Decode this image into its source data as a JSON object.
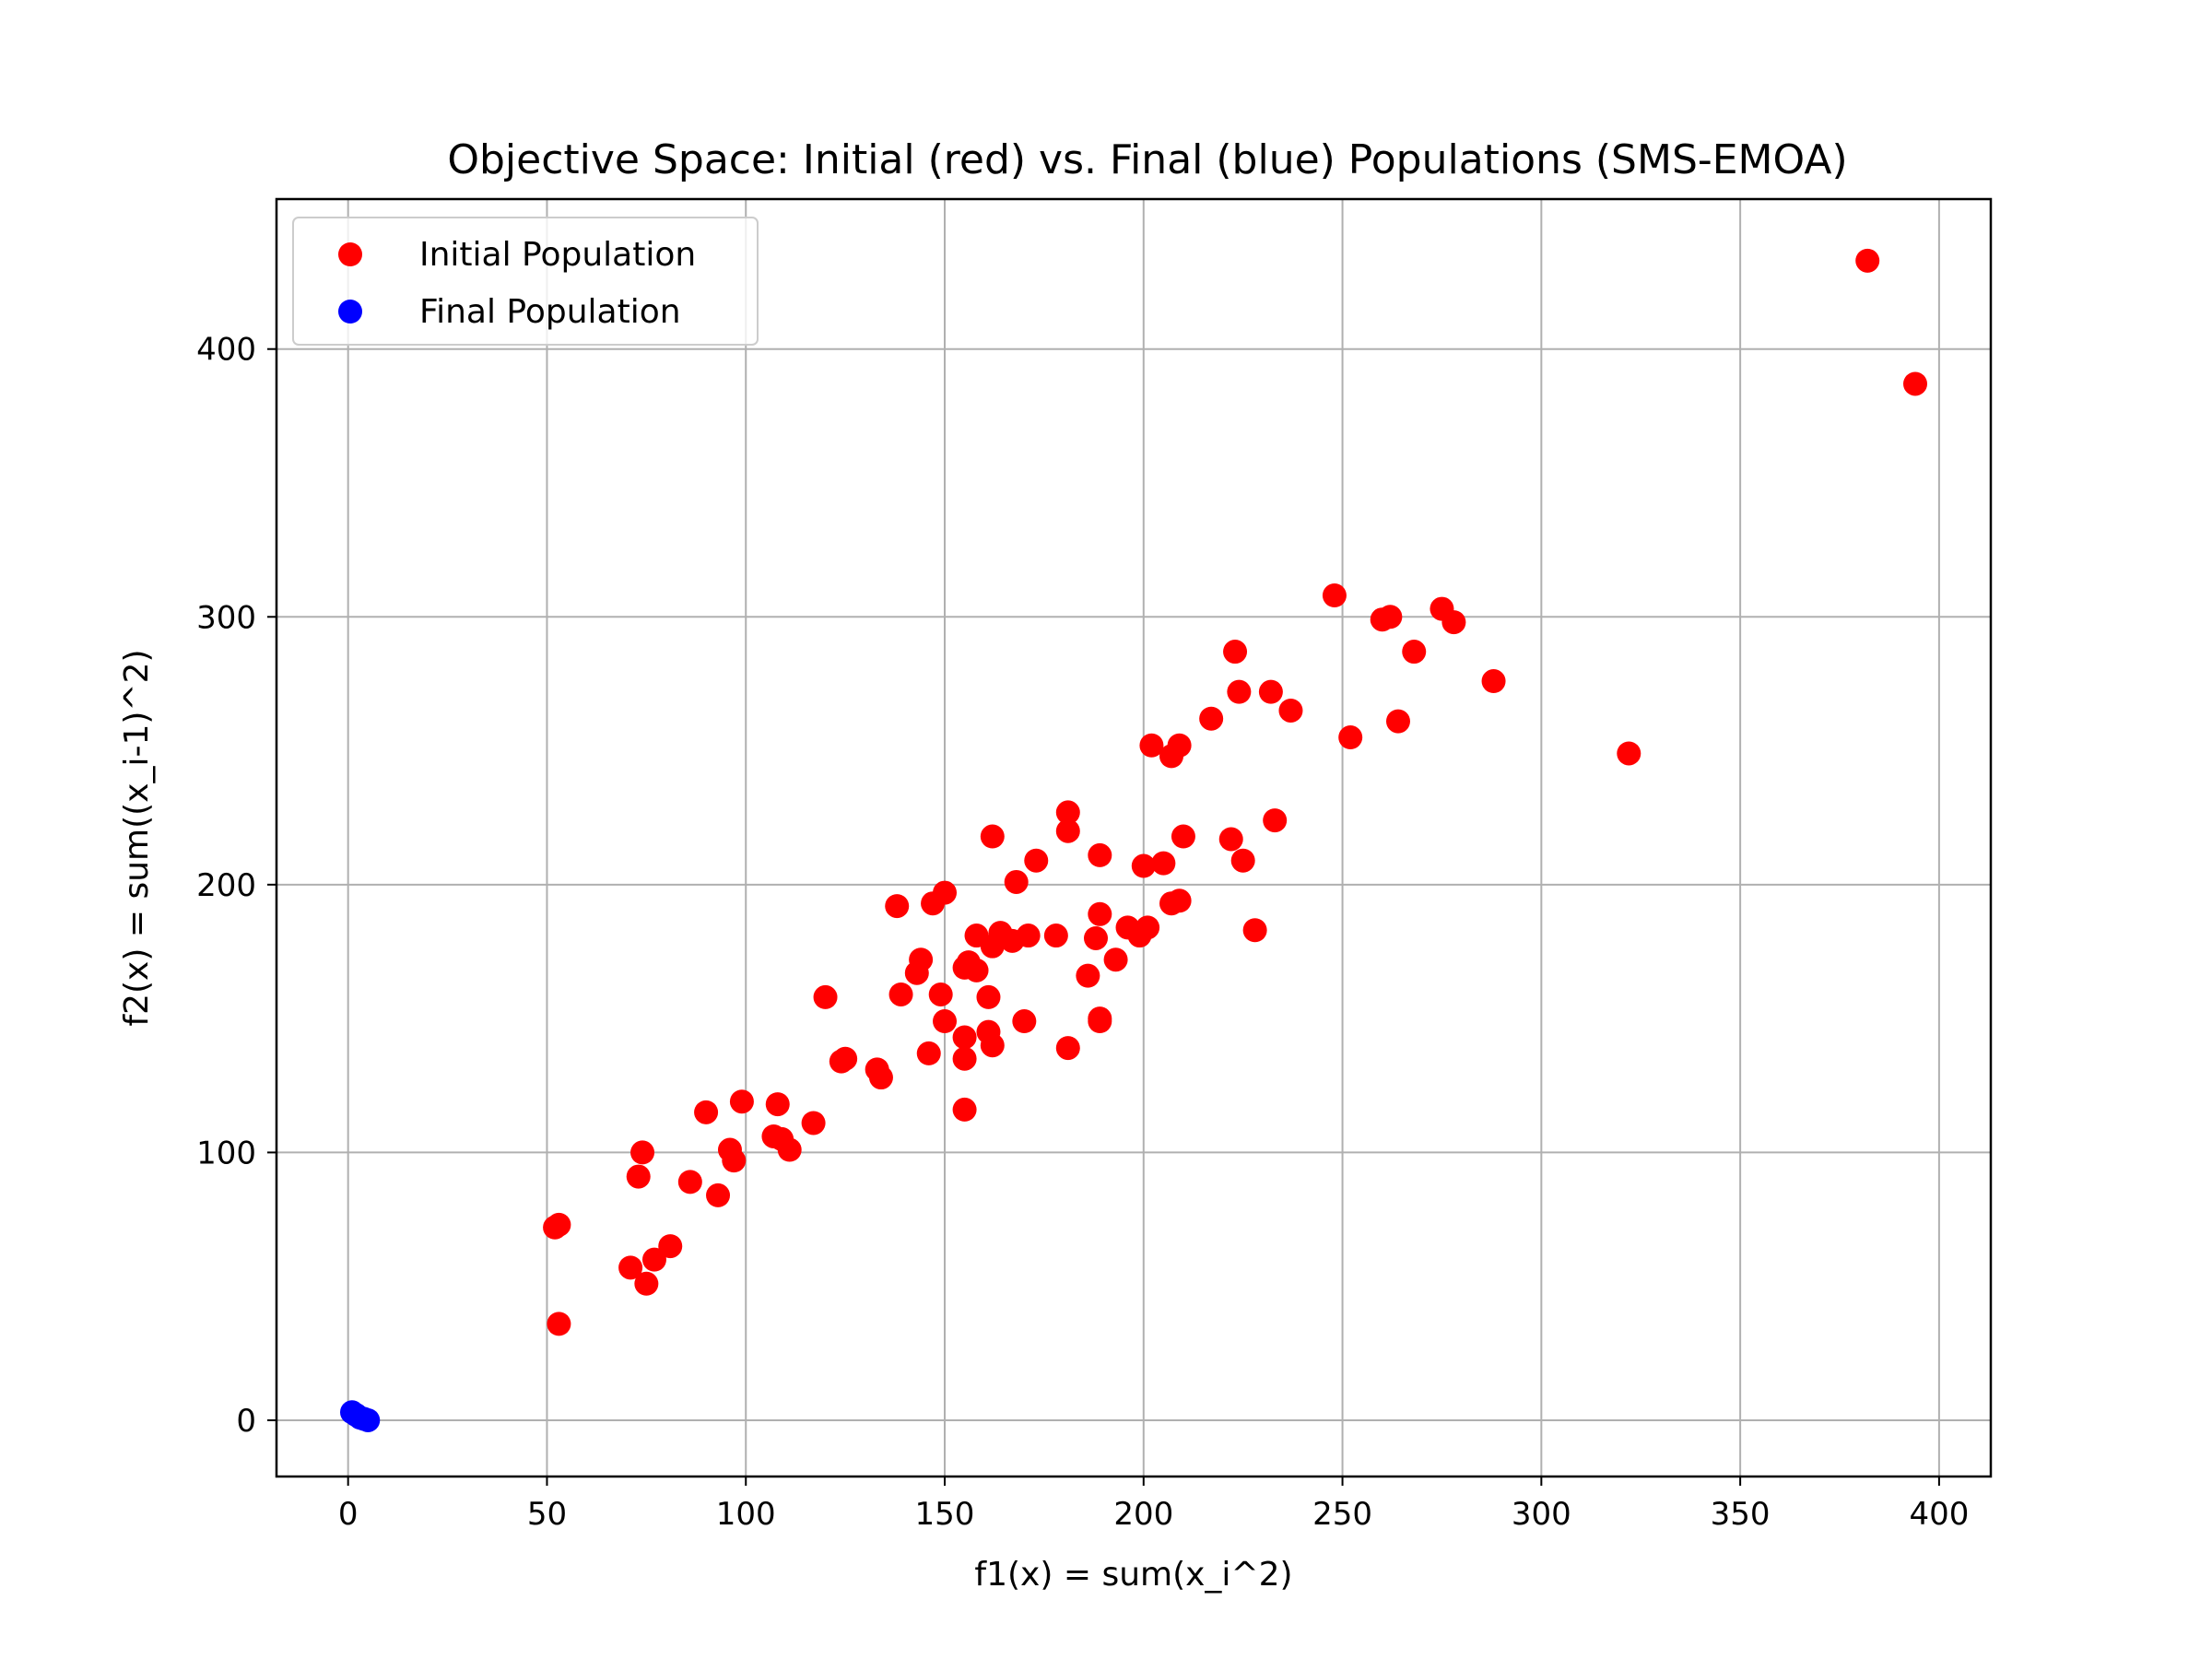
{
  "chart_data": {
    "type": "scatter",
    "title": "Objective Space: Initial (red) vs. Final (blue) Populations (SMS-EMOA)",
    "xlabel": "f1(x) = sum(x_i^2)",
    "ylabel": "f2(x) = sum((x_i-1)^2)",
    "xlim": [
      -18,
      413
    ],
    "ylim": [
      -21,
      456
    ],
    "xticks": [
      0,
      50,
      100,
      150,
      200,
      250,
      300,
      350,
      400
    ],
    "yticks": [
      0,
      100,
      200,
      300,
      400
    ],
    "grid": true,
    "legend_position": "top-left",
    "series": [
      {
        "name": "Initial Population",
        "color": "#ff0000",
        "points": [
          [
            382,
            433
          ],
          [
            394,
            387
          ],
          [
            322,
            249
          ],
          [
            288,
            276
          ],
          [
            278,
            298
          ],
          [
            275,
            303
          ],
          [
            268,
            287
          ],
          [
            264,
            261
          ],
          [
            262,
            300
          ],
          [
            260,
            299
          ],
          [
            252,
            255
          ],
          [
            248,
            308
          ],
          [
            237,
            265
          ],
          [
            233,
            224
          ],
          [
            232,
            272
          ],
          [
            228,
            183
          ],
          [
            225,
            209
          ],
          [
            224,
            272
          ],
          [
            223,
            287
          ],
          [
            222,
            217
          ],
          [
            217,
            262
          ],
          [
            210,
            218
          ],
          [
            209,
            252
          ],
          [
            209,
            194
          ],
          [
            207,
            248
          ],
          [
            207,
            193
          ],
          [
            205,
            208
          ],
          [
            202,
            252
          ],
          [
            201,
            184
          ],
          [
            200,
            207
          ],
          [
            199,
            181
          ],
          [
            196,
            184
          ],
          [
            193,
            172
          ],
          [
            189,
            211
          ],
          [
            189,
            189
          ],
          [
            189,
            150
          ],
          [
            189,
            149
          ],
          [
            188,
            180
          ],
          [
            186,
            166
          ],
          [
            181,
            227
          ],
          [
            181,
            220
          ],
          [
            181,
            139
          ],
          [
            178,
            181
          ],
          [
            173,
            209
          ],
          [
            171,
            181
          ],
          [
            170,
            149
          ],
          [
            168,
            201
          ],
          [
            167,
            179
          ],
          [
            164,
            182
          ],
          [
            162,
            218
          ],
          [
            162,
            177
          ],
          [
            162,
            140
          ],
          [
            161,
            145
          ],
          [
            161,
            158
          ],
          [
            158,
            181
          ],
          [
            158,
            168
          ],
          [
            156,
            171
          ],
          [
            155,
            169
          ],
          [
            155,
            143
          ],
          [
            155,
            135
          ],
          [
            155,
            116
          ],
          [
            150,
            197
          ],
          [
            150,
            149
          ],
          [
            149,
            159
          ],
          [
            147,
            193
          ],
          [
            146,
            137
          ],
          [
            144,
            172
          ],
          [
            143,
            167
          ],
          [
            139,
            159
          ],
          [
            138,
            192
          ],
          [
            134,
            128
          ],
          [
            133,
            131
          ],
          [
            125,
            135
          ],
          [
            124,
            134
          ],
          [
            120,
            158
          ],
          [
            117,
            111
          ],
          [
            111,
            101
          ],
          [
            109,
            105
          ],
          [
            108,
            118
          ],
          [
            107,
            106
          ],
          [
            99,
            119
          ],
          [
            97,
            97
          ],
          [
            96,
            101
          ],
          [
            93,
            84
          ],
          [
            90,
            115
          ],
          [
            86,
            89
          ],
          [
            81,
            65
          ],
          [
            77,
            60
          ],
          [
            75,
            51
          ],
          [
            74,
            100
          ],
          [
            73,
            91
          ],
          [
            71,
            57
          ],
          [
            53,
            36
          ],
          [
            53,
            73
          ],
          [
            52,
            72
          ]
        ]
      },
      {
        "name": "Final Population",
        "color": "#0000ff",
        "points": [
          [
            1,
            3
          ],
          [
            2,
            2
          ],
          [
            3,
            1
          ],
          [
            4,
            0.5
          ],
          [
            5,
            0
          ]
        ]
      }
    ]
  }
}
